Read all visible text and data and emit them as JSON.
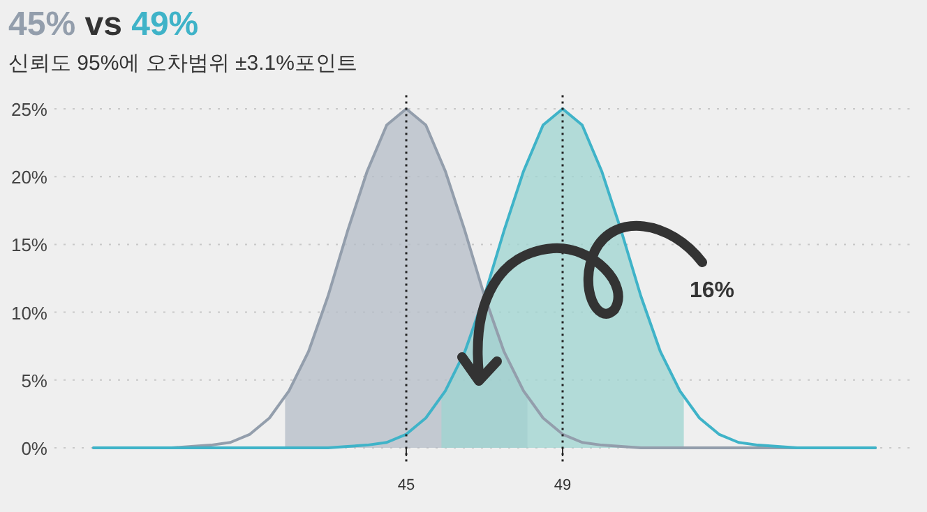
{
  "chart_data": {
    "type": "line",
    "title": "45% vs 49%",
    "subtitle": "신뢰도 95%에 오차범위 ±3.1%포인트",
    "x": [
      37,
      37.5,
      38,
      38.5,
      39,
      39.5,
      40,
      40.5,
      41,
      41.5,
      42,
      42.5,
      43,
      43.5,
      44,
      44.5,
      45,
      45.5,
      46,
      46.5,
      47,
      47.5,
      48,
      48.5,
      49,
      49.5,
      50,
      50.5,
      51,
      51.5,
      52,
      52.5,
      53,
      53.5,
      54,
      54.5,
      55,
      55.5,
      56,
      56.5,
      57
    ],
    "series": [
      {
        "color": "#939eac",
        "values": [
          0,
          0,
          0,
          0,
          0,
          0.1,
          0.2,
          0.4,
          1.0,
          2.2,
          4.2,
          7.1,
          11.2,
          16.0,
          20.4,
          23.8,
          25,
          23.8,
          20.4,
          16.0,
          11.2,
          7.1,
          4.2,
          2.2,
          1.0,
          0.4,
          0.2,
          0.1,
          0,
          0,
          0,
          0,
          0,
          0,
          0,
          0,
          0,
          0,
          0,
          0,
          0
        ]
      },
      {
        "color": "#3fb3c8",
        "values": [
          0,
          0,
          0,
          0,
          0,
          0,
          0,
          0,
          0,
          0,
          0,
          0,
          0,
          0.1,
          0.2,
          0.4,
          1.0,
          2.2,
          4.2,
          7.1,
          11.2,
          16.0,
          20.4,
          23.8,
          25,
          23.8,
          20.4,
          16.0,
          11.2,
          7.1,
          4.2,
          2.2,
          1.0,
          0.4,
          0.2,
          0.1,
          0,
          0,
          0,
          0,
          0
        ]
      },
      {
        "type": "area",
        "color": "#b4bcc7",
        "x": [
          41.9,
          42,
          42.5,
          43,
          43.5,
          44,
          44.5,
          45,
          45.5,
          46,
          46.5,
          47,
          47.5,
          48,
          48.1
        ],
        "values": [
          3.7,
          4.2,
          7.1,
          11.2,
          16.0,
          20.4,
          23.8,
          25,
          23.8,
          20.4,
          16.0,
          11.2,
          7.1,
          4.2,
          3.7
        ]
      },
      {
        "type": "area",
        "color": "#9dd4d0",
        "x": [
          45.9,
          46,
          46.5,
          47,
          47.5,
          48,
          48.5,
          49,
          49.5,
          50,
          50.5,
          51,
          51.5,
          52,
          52.1
        ],
        "values": [
          3.7,
          4.2,
          7.1,
          11.2,
          16.0,
          20.4,
          23.8,
          25,
          23.8,
          20.4,
          16.0,
          11.2,
          7.1,
          4.2,
          3.7
        ]
      }
    ],
    "xlim": [
      36,
      58
    ],
    "xticks": [
      45,
      49
    ],
    "ylim": [
      0,
      26
    ],
    "yticks": [
      {
        "value": 0,
        "label": "0%"
      },
      {
        "value": 5,
        "label": "5%"
      },
      {
        "value": 10,
        "label": "10%"
      },
      {
        "value": 15,
        "label": "15%"
      },
      {
        "value": 20,
        "label": "20%"
      },
      {
        "value": 25,
        "label": "25%"
      }
    ],
    "grid": "y",
    "ref_lines": [
      {
        "axis": "x",
        "value": 45,
        "line_style": "dotted",
        "color": "#222222"
      },
      {
        "axis": "x",
        "value": 49,
        "line_style": "dotted",
        "color": "#222222"
      }
    ],
    "annotations": [
      "16%"
    ]
  }
}
